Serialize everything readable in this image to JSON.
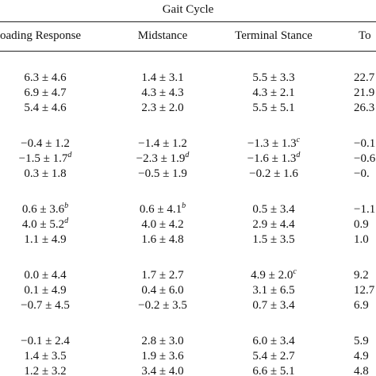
{
  "header": {
    "title": "Gait Cycle"
  },
  "table": {
    "columns": [
      "oading Response",
      "Midstance",
      "Terminal Stance",
      "To"
    ],
    "rows": [
      [
        "6.3 ± 4.6",
        "1.4 ± 3.1",
        "5.5 ± 3.3",
        "22.7"
      ],
      [
        "6.9 ± 4.7",
        "4.3 ± 4.3",
        "4.3 ± 2.1",
        "21.9"
      ],
      [
        "5.4 ± 4.6",
        "2.3 ± 2.0",
        "5.5 ± 5.1",
        "26.3"
      ],
      [
        "−0.4 ± 1.2",
        "−1.4 ± 1.2",
        {
          "text": "−1.3 ± 1.3",
          "sup": "c"
        },
        "−0.1"
      ],
      [
        {
          "text": "−1.5 ± 1.7",
          "sup": "d"
        },
        {
          "text": "−2.3 ± 1.9",
          "sup": "d"
        },
        {
          "text": "−1.6 ± 1.3",
          "sup": "d"
        },
        "−0.6"
      ],
      [
        "0.3 ± 1.8",
        "−0.5 ± 1.9",
        "−0.2 ± 1.6",
        "−0."
      ],
      [
        {
          "text": "0.6 ± 3.6",
          "sup": "b"
        },
        {
          "text": "0.6 ± 4.1",
          "sup": "b"
        },
        "0.5 ± 3.4",
        "−1.1"
      ],
      [
        {
          "text": "4.0 ± 5.2",
          "sup": "d"
        },
        "4.0 ± 4.2",
        "2.9 ± 4.4",
        "0.9"
      ],
      [
        "1.1 ± 4.9",
        "1.6 ± 4.8",
        "1.5 ± 3.5",
        "1.0"
      ],
      [
        "0.0 ± 4.4",
        "1.7 ± 2.7",
        {
          "text": "4.9 ± 2.0",
          "sup": "c"
        },
        "9.2"
      ],
      [
        "0.1 ± 4.9",
        "0.4 ± 6.0",
        "3.1 ± 6.5",
        "12.7"
      ],
      [
        "−0.7 ± 4.5",
        "−0.2 ± 3.5",
        "0.7 ± 3.4",
        "6.9"
      ],
      [
        "−0.1 ± 2.4",
        "2.8 ± 3.0",
        "6.0 ± 3.4",
        "5.9"
      ],
      [
        "1.4 ± 3.5",
        "1.9 ± 3.6",
        "5.4 ± 2.7",
        "4.9"
      ],
      [
        "1.2 ± 3.2",
        "3.4 ± 4.0",
        "6.6 ± 5.1",
        "4.8"
      ]
    ]
  }
}
